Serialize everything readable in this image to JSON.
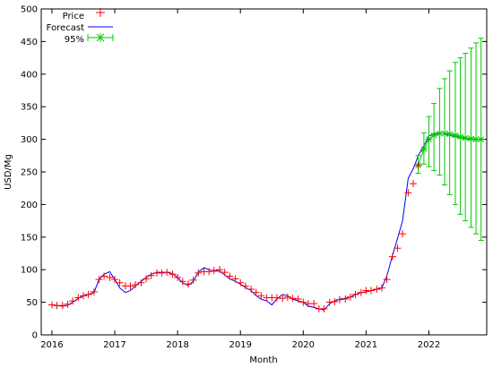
{
  "chart_data": {
    "type": "line",
    "title": "",
    "xlabel": "Month",
    "ylabel": "USD/Mg",
    "xlim": [
      2015.83,
      2022.92
    ],
    "ylim": [
      0,
      500
    ],
    "xticks": [
      2016,
      2017,
      2018,
      2019,
      2020,
      2021,
      2022
    ],
    "xtick_labels": [
      "2016",
      "2017",
      "2018",
      "2019",
      "2020",
      "2021",
      "2022"
    ],
    "yticks": [
      0,
      50,
      100,
      150,
      200,
      250,
      300,
      350,
      400,
      450,
      500
    ],
    "ytick_labels": [
      "0",
      "50",
      "100",
      "150",
      "200",
      "250",
      "300",
      "350",
      "400",
      "450",
      "500"
    ],
    "grid": false,
    "legend_position": "top-left",
    "series": [
      {
        "name": "Price",
        "style": "plus-markers",
        "color": "#ff0000",
        "x": [
          2016.0,
          2016.08,
          2016.17,
          2016.25,
          2016.33,
          2016.42,
          2016.5,
          2016.58,
          2016.67,
          2016.75,
          2016.83,
          2016.92,
          2017.0,
          2017.08,
          2017.17,
          2017.25,
          2017.33,
          2017.42,
          2017.5,
          2017.58,
          2017.67,
          2017.75,
          2017.83,
          2017.92,
          2018.0,
          2018.08,
          2018.17,
          2018.25,
          2018.33,
          2018.42,
          2018.5,
          2018.58,
          2018.67,
          2018.75,
          2018.83,
          2018.92,
          2019.0,
          2019.08,
          2019.17,
          2019.25,
          2019.33,
          2019.42,
          2019.5,
          2019.58,
          2019.67,
          2019.75,
          2019.83,
          2019.92,
          2020.0,
          2020.08,
          2020.17,
          2020.25,
          2020.33,
          2020.42,
          2020.5,
          2020.58,
          2020.67,
          2020.75,
          2020.83,
          2020.92,
          2021.0,
          2021.08,
          2021.17,
          2021.25,
          2021.33,
          2021.42,
          2021.5,
          2021.58,
          2021.67,
          2021.75,
          2021.83
        ],
        "y": [
          46,
          45,
          45,
          47,
          52,
          57,
          60,
          62,
          66,
          85,
          90,
          88,
          85,
          80,
          75,
          75,
          77,
          80,
          86,
          91,
          95,
          95,
          96,
          93,
          88,
          82,
          78,
          84,
          95,
          97,
          97,
          99,
          100,
          96,
          90,
          86,
          80,
          75,
          70,
          65,
          60,
          57,
          57,
          57,
          56,
          58,
          56,
          55,
          50,
          48,
          48,
          40,
          40,
          50,
          51,
          54,
          55,
          58,
          62,
          65,
          68,
          68,
          70,
          72,
          85,
          120,
          133,
          155,
          218,
          232,
          260
        ]
      },
      {
        "name": "Forecast",
        "style": "line",
        "color": "#0000ff",
        "x": [
          2016.0,
          2016.08,
          2016.17,
          2016.25,
          2016.33,
          2016.42,
          2016.5,
          2016.58,
          2016.67,
          2016.75,
          2016.83,
          2016.92,
          2017.0,
          2017.08,
          2017.17,
          2017.25,
          2017.33,
          2017.42,
          2017.5,
          2017.58,
          2017.67,
          2017.75,
          2017.83,
          2017.92,
          2018.0,
          2018.08,
          2018.17,
          2018.25,
          2018.33,
          2018.42,
          2018.5,
          2018.58,
          2018.67,
          2018.75,
          2018.83,
          2018.92,
          2019.0,
          2019.08,
          2019.17,
          2019.25,
          2019.33,
          2019.42,
          2019.5,
          2019.58,
          2019.67,
          2019.75,
          2019.83,
          2019.92,
          2020.0,
          2020.08,
          2020.17,
          2020.25,
          2020.33,
          2020.42,
          2020.5,
          2020.58,
          2020.67,
          2020.75,
          2020.83,
          2020.92,
          2021.0,
          2021.08,
          2021.17,
          2021.25,
          2021.33,
          2021.42,
          2021.5,
          2021.58,
          2021.67,
          2021.75,
          2021.83,
          2021.92,
          2022.0,
          2022.08,
          2022.17,
          2022.25,
          2022.33,
          2022.42,
          2022.5,
          2022.58,
          2022.67,
          2022.75,
          2022.83
        ],
        "y": [
          46,
          45,
          44,
          45,
          50,
          56,
          60,
          62,
          65,
          85,
          93,
          97,
          85,
          72,
          65,
          68,
          75,
          82,
          88,
          93,
          96,
          96,
          96,
          94,
          88,
          80,
          76,
          82,
          96,
          103,
          100,
          98,
          98,
          92,
          86,
          82,
          78,
          73,
          68,
          60,
          55,
          52,
          46,
          55,
          62,
          60,
          55,
          52,
          50,
          44,
          42,
          40,
          38,
          48,
          52,
          55,
          56,
          58,
          62,
          65,
          66,
          68,
          70,
          72,
          90,
          122,
          148,
          175,
          240,
          255,
          275,
          290,
          305,
          309,
          310,
          308,
          306,
          304,
          302,
          301,
          300,
          300,
          300
        ]
      },
      {
        "name": "95%",
        "style": "errorbars",
        "color": "#00cc00",
        "x": [
          2021.83,
          2021.92,
          2022.0,
          2022.08,
          2022.17,
          2022.25,
          2022.33,
          2022.42,
          2022.5,
          2022.58,
          2022.67,
          2022.75,
          2022.83
        ],
        "y": [
          260,
          285,
          300,
          306,
          309,
          309,
          308,
          306,
          304,
          302,
          301,
          300,
          300
        ],
        "low": [
          248,
          262,
          258,
          252,
          245,
          230,
          215,
          200,
          185,
          175,
          165,
          155,
          145
        ],
        "high": [
          275,
          310,
          335,
          355,
          378,
          393,
          405,
          418,
          425,
          432,
          440,
          448,
          455
        ]
      }
    ]
  }
}
